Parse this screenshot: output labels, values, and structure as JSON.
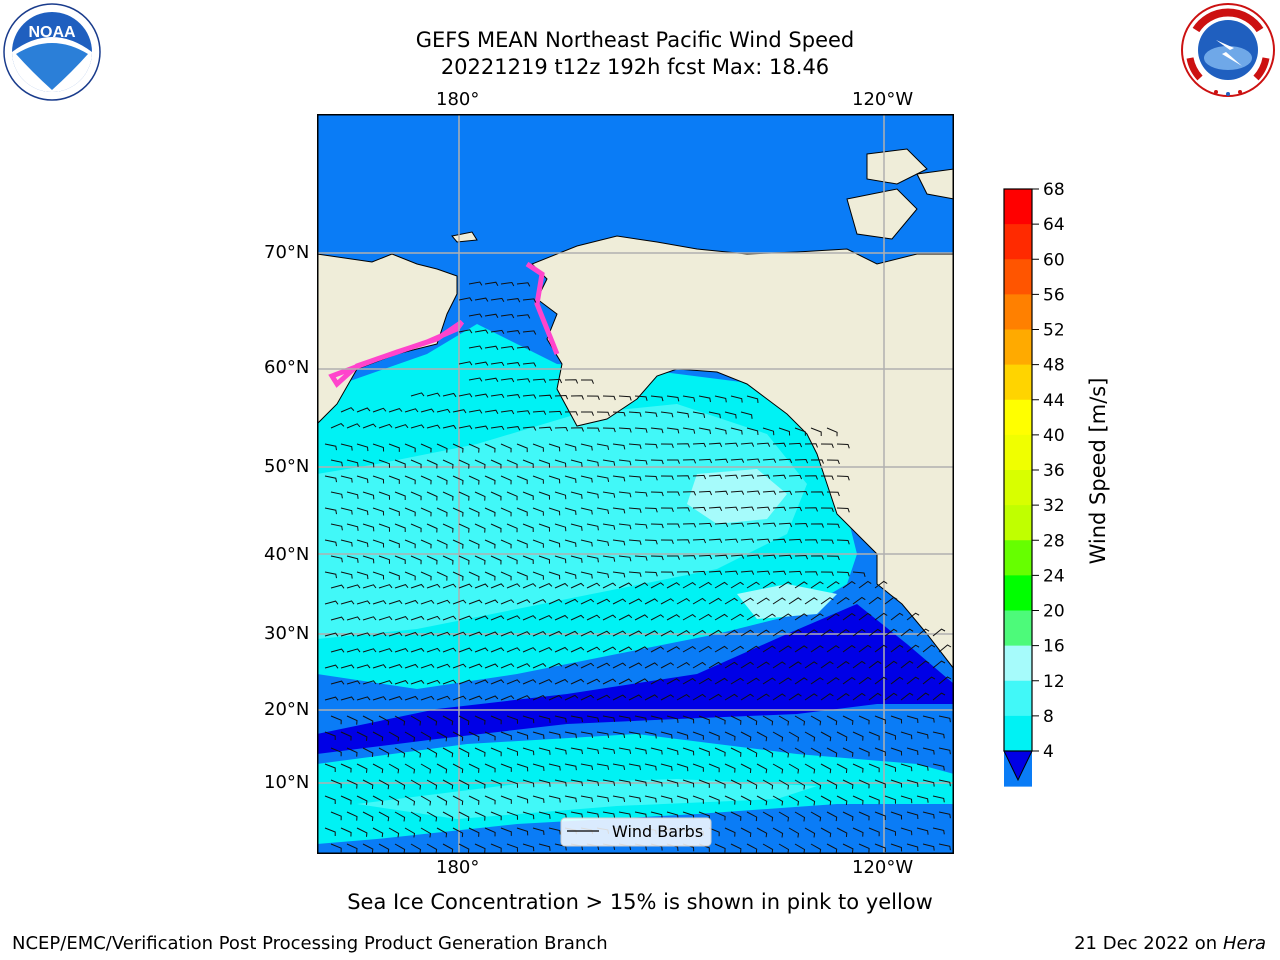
{
  "title": {
    "line1": "GEFS MEAN Northeast Pacific Wind Speed",
    "line2": "20221219 t12z 192h fcst   Max: 18.46"
  },
  "map": {
    "top_lon_labels": [
      "180°",
      "120°W"
    ],
    "bottom_lon_labels": [
      "180°",
      "120°W"
    ],
    "lat_labels": [
      "70°N",
      "60°N",
      "50°N",
      "40°N",
      "30°N",
      "20°N",
      "10°N"
    ],
    "legend_label": "Wind Barbs",
    "colors": {
      "land": "#efedd9",
      "band_4_8": "#0a7cf6",
      "band_8_12": "#00f2f4",
      "band_12_16": "#41f8f8",
      "band_16_20": "#a6fbfb",
      "below_4": "#0000e6",
      "sea_ice": "#ff44cc"
    }
  },
  "colorbar": {
    "label": "Wind Speed [m/s]",
    "ticks": [
      "68",
      "64",
      "60",
      "56",
      "52",
      "48",
      "44",
      "40",
      "36",
      "32",
      "28",
      "24",
      "20",
      "16",
      "12",
      "8",
      "4"
    ],
    "colors": [
      "#ff0000",
      "#ff2a00",
      "#ff5500",
      "#ff8000",
      "#ffaa00",
      "#ffd400",
      "#ffff00",
      "#f0ff00",
      "#d8ff00",
      "#c0ff00",
      "#66ff00",
      "#00ff00",
      "#4dfa7a",
      "#a6fbfb",
      "#41f8f8",
      "#00f2f4",
      "#0a7cf6"
    ],
    "under_color": "#0000e6"
  },
  "note": "Sea Ice Concentration > 15% is shown in pink to yellow",
  "footer": {
    "credit": "NCEP/EMC/Verification Post Processing Product Generation Branch",
    "date": "21 Dec 2022 on",
    "host": "Hera"
  },
  "logos": {
    "left": "noaa-logo",
    "right": "nws-logo",
    "left_text": "NOAA"
  }
}
